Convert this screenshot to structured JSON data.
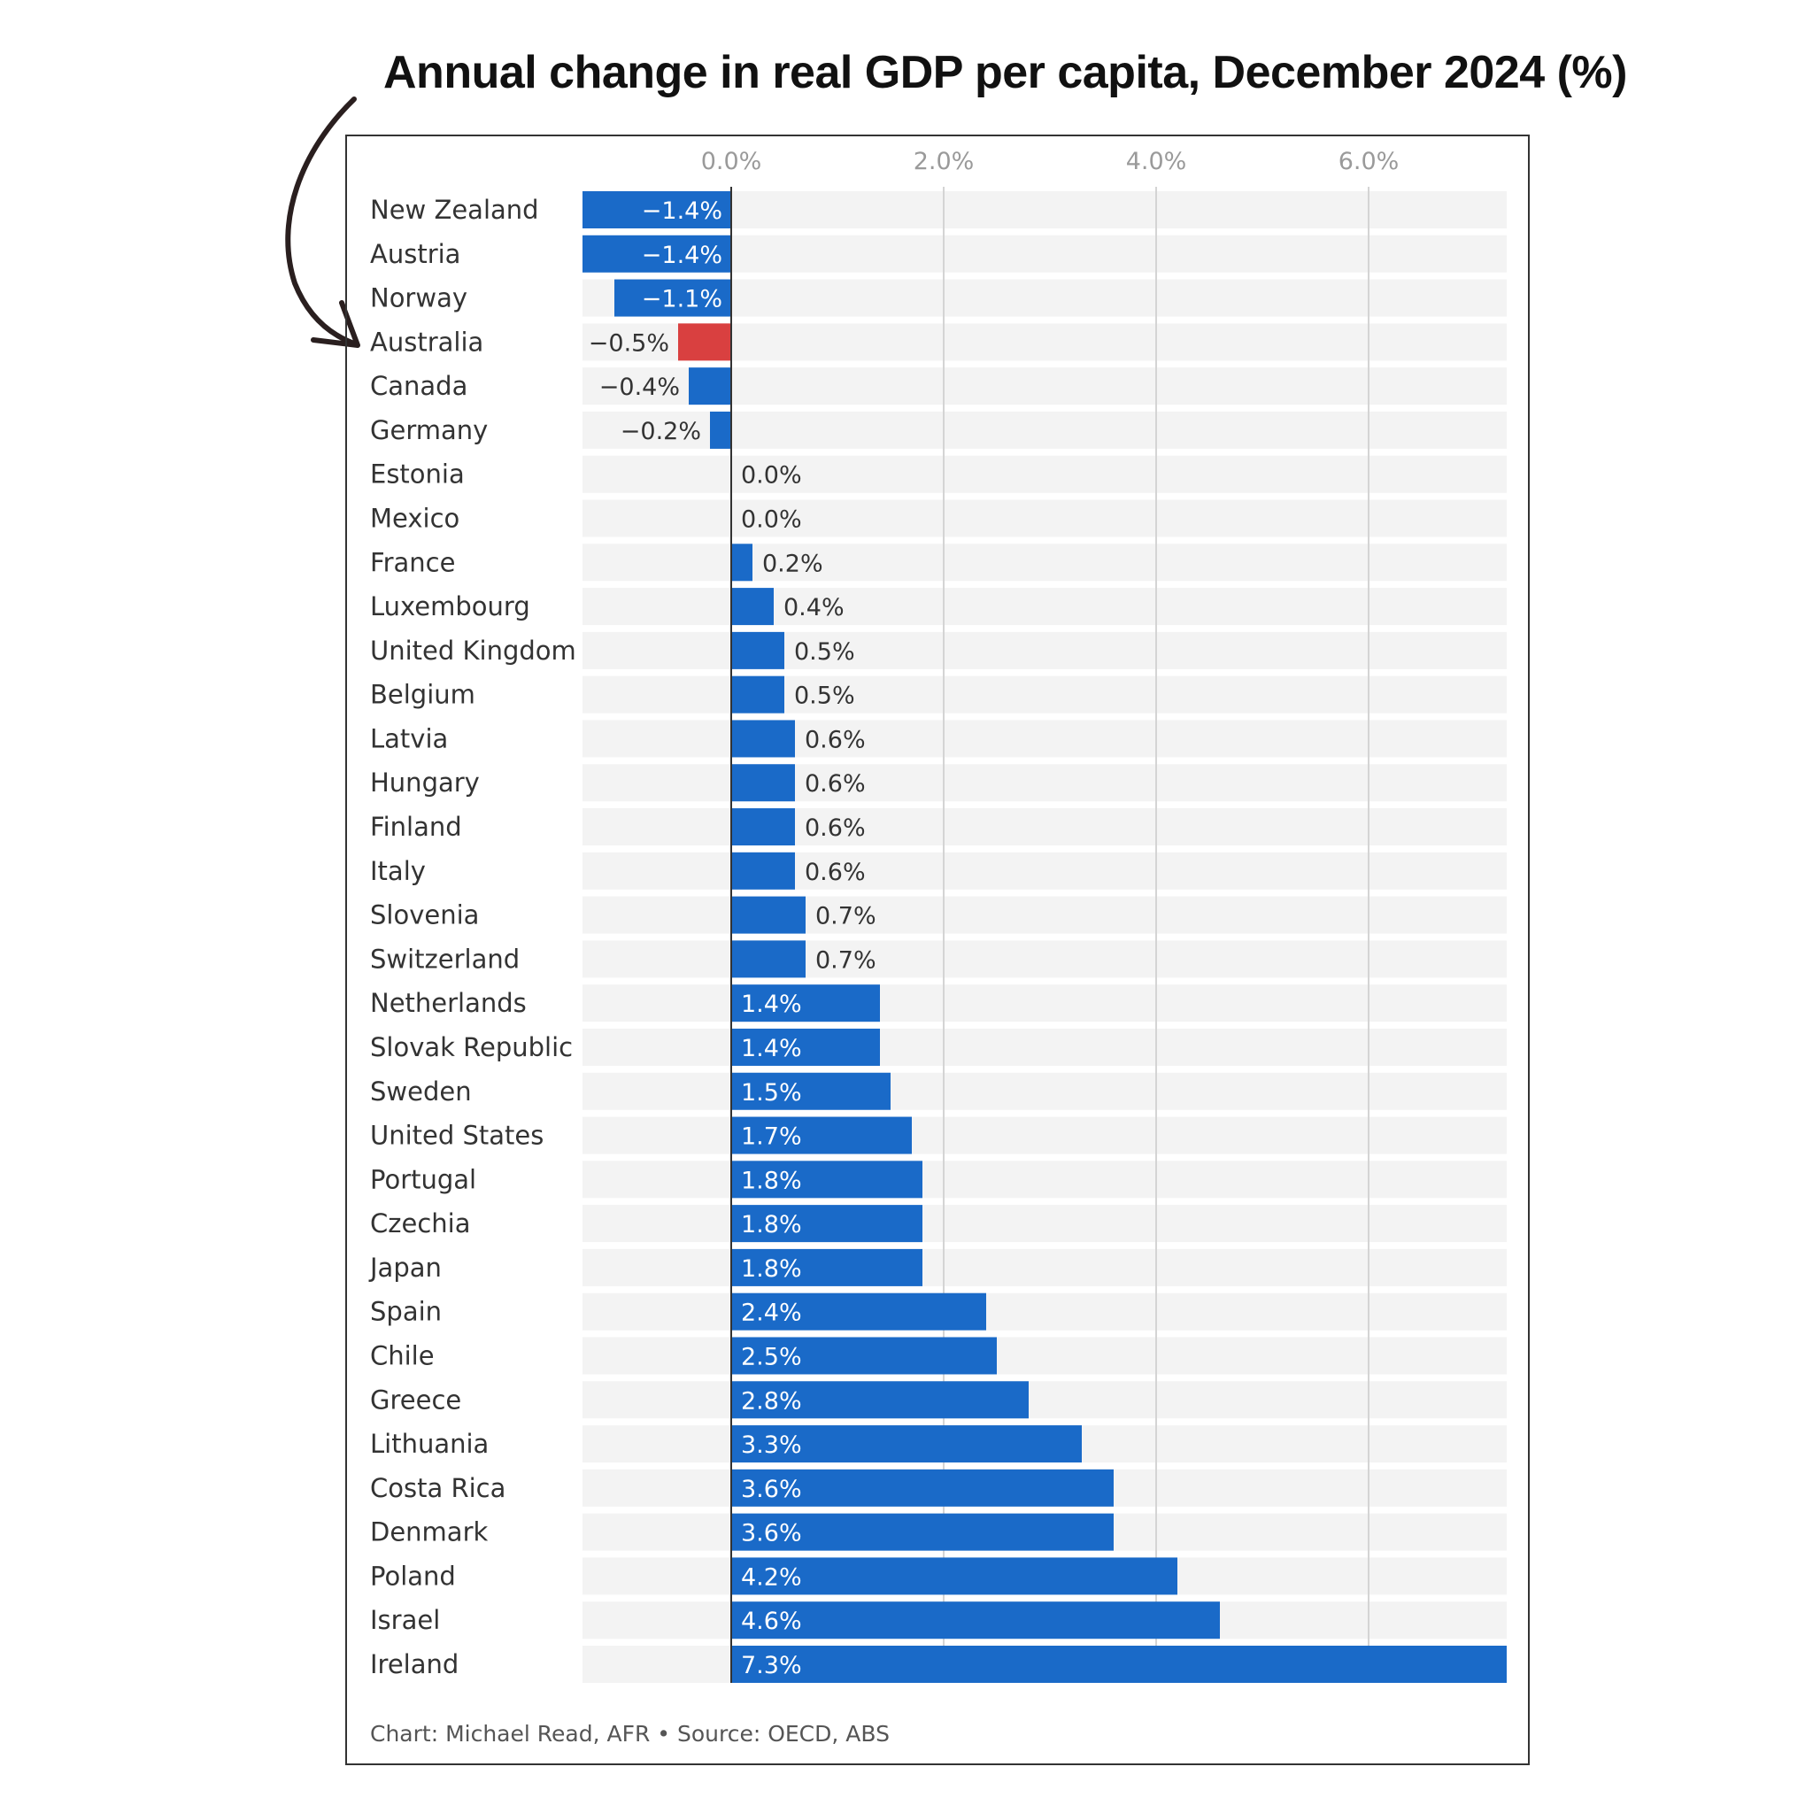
{
  "title": "Annual change in real GDP per capita, December 2024 (%)",
  "credit": "Chart: Michael Read, AFR • Source: OECD, ABS",
  "colors": {
    "bar": "#1a6ac8",
    "highlight": "#d94040",
    "row_bg": "#f3f3f3",
    "grid": "#d4d4d4",
    "tick_text": "#9a9a9a",
    "label_text": "#333333",
    "axis": "#333333"
  },
  "annotation": {
    "icon": "curved-arrow-icon",
    "points_to": "Australia"
  },
  "chart_data": {
    "type": "bar",
    "orientation": "horizontal",
    "title": "Annual change in real GDP per capita, December 2024 (%)",
    "xlabel": "",
    "ylabel": "",
    "xlim": [
      -1.4,
      7.3
    ],
    "xticks": [
      0,
      2,
      4,
      6
    ],
    "xtick_labels": [
      "0.0%",
      "2.0%",
      "4.0%",
      "6.0%"
    ],
    "grid": true,
    "highlight": "Australia",
    "categories": [
      "New Zealand",
      "Austria",
      "Norway",
      "Australia",
      "Canada",
      "Germany",
      "Estonia",
      "Mexico",
      "France",
      "Luxembourg",
      "United Kingdom",
      "Belgium",
      "Latvia",
      "Hungary",
      "Finland",
      "Italy",
      "Slovenia",
      "Switzerland",
      "Netherlands",
      "Slovak Republic",
      "Sweden",
      "United States",
      "Portugal",
      "Czechia",
      "Japan",
      "Spain",
      "Chile",
      "Greece",
      "Lithuania",
      "Costa Rica",
      "Denmark",
      "Poland",
      "Israel",
      "Ireland"
    ],
    "values": [
      -1.4,
      -1.4,
      -1.1,
      -0.5,
      -0.4,
      -0.2,
      0.0,
      0.0,
      0.2,
      0.4,
      0.5,
      0.5,
      0.6,
      0.6,
      0.6,
      0.6,
      0.7,
      0.7,
      1.4,
      1.4,
      1.5,
      1.7,
      1.8,
      1.8,
      1.8,
      2.4,
      2.5,
      2.8,
      3.3,
      3.6,
      3.6,
      4.2,
      4.6,
      7.3
    ],
    "value_labels": [
      "−1.4%",
      "−1.4%",
      "−1.1%",
      "−0.5%",
      "−0.4%",
      "−0.2%",
      "0.0%",
      "0.0%",
      "0.2%",
      "0.4%",
      "0.5%",
      "0.5%",
      "0.6%",
      "0.6%",
      "0.6%",
      "0.6%",
      "0.7%",
      "0.7%",
      "1.4%",
      "1.4%",
      "1.5%",
      "1.7%",
      "1.8%",
      "1.8%",
      "1.8%",
      "2.4%",
      "2.5%",
      "2.8%",
      "3.3%",
      "3.6%",
      "3.6%",
      "4.2%",
      "4.6%",
      "7.3%"
    ]
  }
}
